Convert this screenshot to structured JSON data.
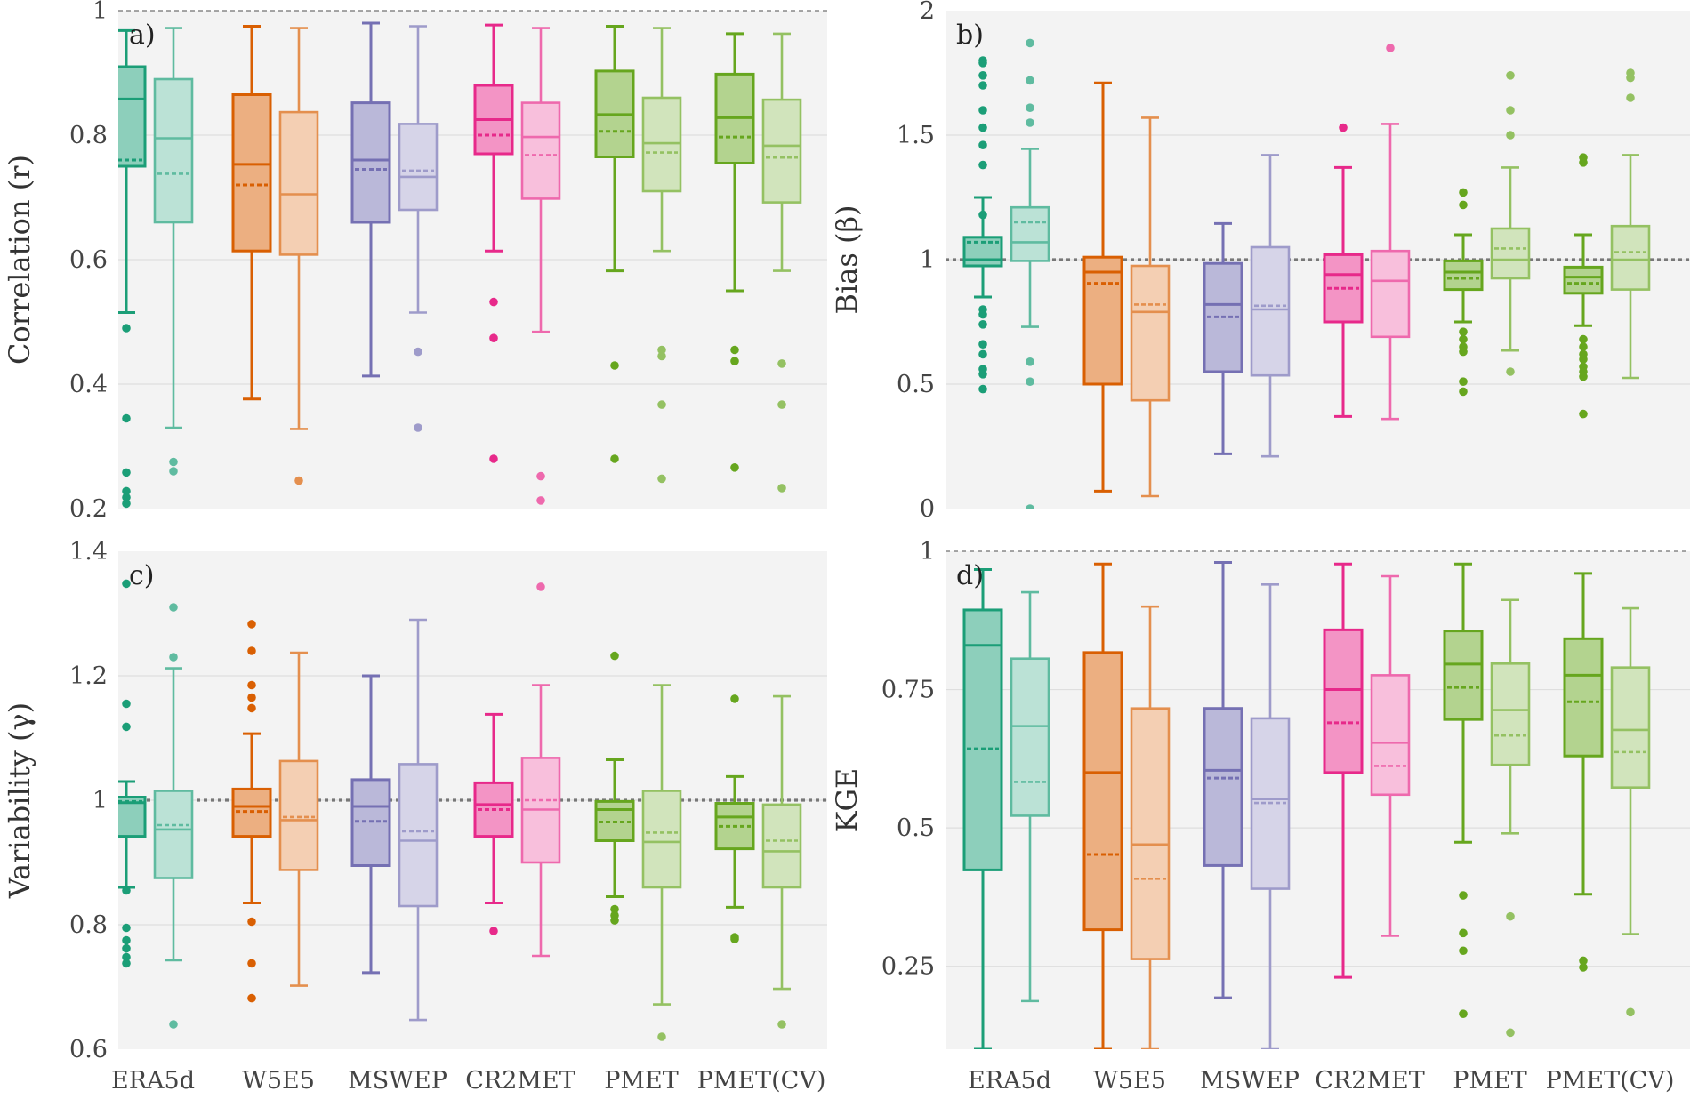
{
  "colors": {
    "ERA5d": "#1b9e77",
    "W5E5": "#d95f02",
    "MSWEP": "#7570b3",
    "CR2MET": "#e7298a",
    "PMET": "#66a61e",
    "PMET(CV)": "#66a61e",
    "panel_bg": "#f3f3f3",
    "grid": "#dedede",
    "reference_line": "#777777"
  },
  "chart_data": [
    {
      "type": "box",
      "panel_label": "a)",
      "ylabel": "Correlation (r)",
      "ylim": [
        0.2,
        1.0
      ],
      "yticks": [
        0.2,
        0.4,
        0.6,
        0.8,
        1.0
      ],
      "ytick_labels": [
        "0.2",
        "0.4",
        "0.6",
        "0.8",
        "1"
      ],
      "reference_line": 1.0,
      "reference_style": "thin",
      "categories": [
        "ERA5d",
        "W5E5",
        "MSWEP",
        "CR2MET",
        "PMET",
        "PMET(CV)"
      ],
      "show_xlabels": false,
      "boxes": [
        {
          "cat": "ERA5d",
          "variant": "dark",
          "whislo": 0.515,
          "q1": 0.75,
          "med": 0.858,
          "q3": 0.91,
          "whishi": 0.968,
          "mean": 0.76,
          "fliers": [
            0.49,
            0.345,
            0.258,
            0.228,
            0.218,
            0.208
          ]
        },
        {
          "cat": "ERA5d",
          "variant": "light",
          "whislo": 0.33,
          "q1": 0.66,
          "med": 0.795,
          "q3": 0.89,
          "whishi": 0.972,
          "mean": 0.738,
          "fliers": [
            0.275,
            0.26
          ]
        },
        {
          "cat": "W5E5",
          "variant": "dark",
          "whislo": 0.376,
          "q1": 0.614,
          "med": 0.753,
          "q3": 0.865,
          "whishi": 0.975,
          "mean": 0.72,
          "fliers": []
        },
        {
          "cat": "W5E5",
          "variant": "light",
          "whislo": 0.328,
          "q1": 0.608,
          "med": 0.705,
          "q3": 0.837,
          "whishi": 0.972,
          "mean": null,
          "fliers": [
            0.245
          ]
        },
        {
          "cat": "MSWEP",
          "variant": "dark",
          "whislo": 0.413,
          "q1": 0.66,
          "med": 0.76,
          "q3": 0.852,
          "whishi": 0.98,
          "mean": 0.745,
          "fliers": []
        },
        {
          "cat": "MSWEP",
          "variant": "light",
          "whislo": 0.515,
          "q1": 0.68,
          "med": 0.733,
          "q3": 0.818,
          "whishi": 0.975,
          "mean": 0.743,
          "fliers": [
            0.452,
            0.33
          ]
        },
        {
          "cat": "CR2MET",
          "variant": "dark",
          "whislo": 0.614,
          "q1": 0.77,
          "med": 0.825,
          "q3": 0.88,
          "whishi": 0.977,
          "mean": 0.8,
          "fliers": [
            0.532,
            0.474,
            0.28
          ]
        },
        {
          "cat": "CR2MET",
          "variant": "light",
          "whislo": 0.484,
          "q1": 0.698,
          "med": 0.797,
          "q3": 0.852,
          "whishi": 0.972,
          "mean": 0.768,
          "fliers": [
            0.252,
            0.213
          ]
        },
        {
          "cat": "PMET",
          "variant": "dark",
          "whislo": 0.582,
          "q1": 0.765,
          "med": 0.833,
          "q3": 0.903,
          "whishi": 0.975,
          "mean": 0.806,
          "fliers": [
            0.43,
            0.28
          ]
        },
        {
          "cat": "PMET",
          "variant": "light",
          "whislo": 0.614,
          "q1": 0.71,
          "med": 0.787,
          "q3": 0.86,
          "whishi": 0.972,
          "mean": 0.772,
          "fliers": [
            0.455,
            0.445,
            0.367,
            0.248
          ]
        },
        {
          "cat": "PMET(CV)",
          "variant": "dark",
          "whislo": 0.55,
          "q1": 0.755,
          "med": 0.828,
          "q3": 0.898,
          "whishi": 0.963,
          "mean": 0.797,
          "fliers": [
            0.455,
            0.437,
            0.266
          ]
        },
        {
          "cat": "PMET(CV)",
          "variant": "light",
          "whislo": 0.582,
          "q1": 0.692,
          "med": 0.783,
          "q3": 0.857,
          "whishi": 0.963,
          "mean": 0.764,
          "fliers": [
            0.433,
            0.367,
            0.233
          ]
        }
      ]
    },
    {
      "type": "box",
      "panel_label": "b)",
      "ylabel": "Bias (β)",
      "ylim": [
        0,
        2
      ],
      "yticks": [
        0,
        0.5,
        1,
        1.5,
        2
      ],
      "ytick_labels": [
        "0",
        "0.5",
        "1",
        "1.5",
        "2"
      ],
      "reference_line": 1.0,
      "reference_style": "thick",
      "categories": [
        "ERA5d",
        "W5E5",
        "MSWEP",
        "CR2MET",
        "PMET",
        "PMET(CV)"
      ],
      "show_xlabels": false,
      "boxes": [
        {
          "cat": "ERA5d",
          "variant": "dark",
          "whislo": 0.85,
          "q1": 0.975,
          "med": 1.0,
          "q3": 1.09,
          "whishi": 1.25,
          "mean": 1.07,
          "fliers": [
            1.8,
            1.79,
            1.74,
            1.7,
            1.6,
            1.53,
            1.46,
            1.38,
            1.18,
            0.8,
            0.78,
            0.74,
            0.66,
            0.62,
            0.56,
            0.54,
            0.48
          ]
        },
        {
          "cat": "ERA5d",
          "variant": "light",
          "whislo": 0.73,
          "q1": 0.995,
          "med": 1.07,
          "q3": 1.21,
          "whishi": 1.445,
          "mean": 1.15,
          "fliers": [
            1.87,
            1.72,
            1.61,
            1.55,
            0.59,
            0.51,
            0.0
          ]
        },
        {
          "cat": "W5E5",
          "variant": "dark",
          "whislo": 0.07,
          "q1": 0.5,
          "med": 0.95,
          "q3": 1.01,
          "whishi": 1.71,
          "mean": 0.905,
          "fliers": []
        },
        {
          "cat": "W5E5",
          "variant": "light",
          "whislo": 0.05,
          "q1": 0.435,
          "med": 0.79,
          "q3": 0.975,
          "whishi": 1.57,
          "mean": 0.82,
          "fliers": []
        },
        {
          "cat": "MSWEP",
          "variant": "dark",
          "whislo": 0.22,
          "q1": 0.55,
          "med": 0.82,
          "q3": 0.985,
          "whishi": 1.145,
          "mean": 0.77,
          "fliers": []
        },
        {
          "cat": "MSWEP",
          "variant": "light",
          "whislo": 0.21,
          "q1": 0.535,
          "med": 0.8,
          "q3": 1.05,
          "whishi": 1.42,
          "mean": 0.815,
          "fliers": []
        },
        {
          "cat": "CR2MET",
          "variant": "dark",
          "whislo": 0.37,
          "q1": 0.75,
          "med": 0.94,
          "q3": 1.02,
          "whishi": 1.37,
          "mean": 0.885,
          "fliers": [
            1.53
          ]
        },
        {
          "cat": "CR2MET",
          "variant": "light",
          "whislo": 0.36,
          "q1": 0.69,
          "med": 0.915,
          "q3": 1.035,
          "whishi": 1.545,
          "mean": null,
          "fliers": [
            1.85
          ]
        },
        {
          "cat": "PMET",
          "variant": "dark",
          "whislo": 0.75,
          "q1": 0.88,
          "med": 0.95,
          "q3": 0.995,
          "whishi": 1.1,
          "mean": 0.925,
          "fliers": [
            1.27,
            1.22,
            0.71,
            0.68,
            0.65,
            0.63,
            0.51,
            0.47
          ]
        },
        {
          "cat": "PMET",
          "variant": "light",
          "whislo": 0.635,
          "q1": 0.925,
          "med": 1.0,
          "q3": 1.125,
          "whishi": 1.37,
          "mean": 1.045,
          "fliers": [
            1.74,
            1.6,
            1.5,
            0.55
          ]
        },
        {
          "cat": "PMET(CV)",
          "variant": "dark",
          "whislo": 0.735,
          "q1": 0.865,
          "med": 0.93,
          "q3": 0.97,
          "whishi": 1.1,
          "mean": 0.905,
          "fliers": [
            1.41,
            1.39,
            0.68,
            0.65,
            0.62,
            0.6,
            0.57,
            0.55,
            0.53,
            0.38
          ]
        },
        {
          "cat": "PMET(CV)",
          "variant": "light",
          "whislo": 0.525,
          "q1": 0.88,
          "med": 1.0,
          "q3": 1.135,
          "whishi": 1.42,
          "mean": 1.03,
          "fliers": [
            1.75,
            1.73,
            1.65
          ]
        }
      ]
    },
    {
      "type": "box",
      "panel_label": "c)",
      "ylabel": "Variability (γ)",
      "ylim": [
        0.6,
        1.4
      ],
      "yticks": [
        0.6,
        0.8,
        1.0,
        1.2,
        1.4
      ],
      "ytick_labels": [
        "0.6",
        "0.8",
        "1",
        "1.2",
        "1.4"
      ],
      "reference_line": 1.0,
      "reference_style": "thick",
      "categories": [
        "ERA5d",
        "W5E5",
        "MSWEP",
        "CR2MET",
        "PMET",
        "PMET(CV)"
      ],
      "show_xlabels": true,
      "boxes": [
        {
          "cat": "ERA5d",
          "variant": "dark",
          "whislo": 0.86,
          "q1": 0.942,
          "med": 0.996,
          "q3": 1.005,
          "whishi": 1.03,
          "mean": 0.998,
          "fliers": [
            1.348,
            1.155,
            1.118,
            0.855,
            0.795,
            0.775,
            0.762,
            0.748,
            0.738
          ]
        },
        {
          "cat": "ERA5d",
          "variant": "light",
          "whislo": 0.743,
          "q1": 0.875,
          "med": 0.953,
          "q3": 1.015,
          "whishi": 1.212,
          "mean": 0.96,
          "fliers": [
            1.31,
            1.23,
            0.64
          ]
        },
        {
          "cat": "W5E5",
          "variant": "dark",
          "whislo": 0.835,
          "q1": 0.942,
          "med": 0.99,
          "q3": 1.018,
          "whishi": 1.107,
          "mean": 0.982,
          "fliers": [
            1.283,
            1.24,
            1.185,
            1.165,
            1.148,
            0.805,
            0.738,
            0.682
          ]
        },
        {
          "cat": "W5E5",
          "variant": "light",
          "whislo": 0.702,
          "q1": 0.888,
          "med": 0.968,
          "q3": 1.063,
          "whishi": 1.237,
          "mean": 0.973,
          "fliers": []
        },
        {
          "cat": "MSWEP",
          "variant": "dark",
          "whislo": 0.723,
          "q1": 0.895,
          "med": 0.99,
          "q3": 1.033,
          "whishi": 1.2,
          "mean": 0.966,
          "fliers": []
        },
        {
          "cat": "MSWEP",
          "variant": "light",
          "whislo": 0.647,
          "q1": 0.83,
          "med": 0.935,
          "q3": 1.058,
          "whishi": 1.29,
          "mean": 0.95,
          "fliers": []
        },
        {
          "cat": "CR2MET",
          "variant": "dark",
          "whislo": 0.835,
          "q1": 0.942,
          "med": 0.993,
          "q3": 1.028,
          "whishi": 1.138,
          "mean": 0.985,
          "fliers": [
            0.79
          ]
        },
        {
          "cat": "CR2MET",
          "variant": "light",
          "whislo": 0.75,
          "q1": 0.9,
          "med": 0.985,
          "q3": 1.068,
          "whishi": 1.185,
          "mean": 1.0,
          "fliers": [
            1.343
          ]
        },
        {
          "cat": "PMET",
          "variant": "dark",
          "whislo": 0.845,
          "q1": 0.935,
          "med": 0.985,
          "q3": 0.998,
          "whishi": 1.065,
          "mean": 0.965,
          "fliers": [
            1.232,
            0.825,
            0.815,
            0.807
          ]
        },
        {
          "cat": "PMET",
          "variant": "light",
          "whislo": 0.672,
          "q1": 0.86,
          "med": 0.933,
          "q3": 1.015,
          "whishi": 1.185,
          "mean": 0.948,
          "fliers": [
            0.62
          ]
        },
        {
          "cat": "PMET(CV)",
          "variant": "dark",
          "whislo": 0.828,
          "q1": 0.922,
          "med": 0.973,
          "q3": 0.995,
          "whishi": 1.038,
          "mean": 0.958,
          "fliers": [
            1.163,
            0.78,
            0.777
          ]
        },
        {
          "cat": "PMET(CV)",
          "variant": "light",
          "whislo": 0.697,
          "q1": 0.86,
          "med": 0.918,
          "q3": 0.993,
          "whishi": 1.167,
          "mean": 0.935,
          "fliers": [
            0.64
          ]
        }
      ]
    },
    {
      "type": "box",
      "panel_label": "d)",
      "ylabel": "KGE",
      "ylim": [
        0.1,
        1.0
      ],
      "yticks": [
        0.25,
        0.5,
        0.75,
        1.0
      ],
      "ytick_labels": [
        "0.25",
        "0.5",
        "0.75",
        "1"
      ],
      "reference_line": 1.0,
      "reference_style": "thin",
      "categories": [
        "ERA5d",
        "W5E5",
        "MSWEP",
        "CR2MET",
        "PMET",
        "PMET(CV)"
      ],
      "show_xlabels": true,
      "boxes": [
        {
          "cat": "ERA5d",
          "variant": "dark",
          "whislo": 0.1,
          "q1": 0.424,
          "med": 0.83,
          "q3": 0.894,
          "whishi": 0.967,
          "mean": 0.643,
          "fliers": []
        },
        {
          "cat": "ERA5d",
          "variant": "light",
          "whislo": 0.187,
          "q1": 0.522,
          "med": 0.684,
          "q3": 0.806,
          "whishi": 0.926,
          "mean": 0.583,
          "fliers": []
        },
        {
          "cat": "W5E5",
          "variant": "dark",
          "whislo": 0.1,
          "q1": 0.316,
          "med": 0.6,
          "q3": 0.817,
          "whishi": 0.977,
          "mean": 0.452,
          "fliers": []
        },
        {
          "cat": "W5E5",
          "variant": "light",
          "whislo": 0.1,
          "q1": 0.263,
          "med": 0.47,
          "q3": 0.716,
          "whishi": 0.9,
          "mean": 0.408,
          "fliers": []
        },
        {
          "cat": "MSWEP",
          "variant": "dark",
          "whislo": 0.193,
          "q1": 0.432,
          "med": 0.604,
          "q3": 0.716,
          "whishi": 0.98,
          "mean": 0.59,
          "fliers": []
        },
        {
          "cat": "MSWEP",
          "variant": "light",
          "whislo": 0.1,
          "q1": 0.39,
          "med": 0.552,
          "q3": 0.698,
          "whishi": 0.94,
          "mean": 0.545,
          "fliers": []
        },
        {
          "cat": "CR2MET",
          "variant": "dark",
          "whislo": 0.23,
          "q1": 0.6,
          "med": 0.75,
          "q3": 0.858,
          "whishi": 0.977,
          "mean": 0.69,
          "fliers": []
        },
        {
          "cat": "CR2MET",
          "variant": "light",
          "whislo": 0.305,
          "q1": 0.56,
          "med": 0.654,
          "q3": 0.776,
          "whishi": 0.955,
          "mean": 0.612,
          "fliers": []
        },
        {
          "cat": "PMET",
          "variant": "dark",
          "whislo": 0.474,
          "q1": 0.696,
          "med": 0.796,
          "q3": 0.856,
          "whishi": 0.977,
          "mean": 0.754,
          "fliers": [
            0.378,
            0.31,
            0.278,
            0.164
          ]
        },
        {
          "cat": "PMET",
          "variant": "light",
          "whislo": 0.49,
          "q1": 0.614,
          "med": 0.713,
          "q3": 0.797,
          "whishi": 0.912,
          "mean": 0.667,
          "fliers": [
            0.34,
            0.13
          ]
        },
        {
          "cat": "PMET(CV)",
          "variant": "dark",
          "whislo": 0.38,
          "q1": 0.63,
          "med": 0.776,
          "q3": 0.842,
          "whishi": 0.96,
          "mean": 0.728,
          "fliers": [
            0.26,
            0.248
          ]
        },
        {
          "cat": "PMET(CV)",
          "variant": "light",
          "whislo": 0.308,
          "q1": 0.573,
          "med": 0.677,
          "q3": 0.79,
          "whishi": 0.897,
          "mean": 0.637,
          "fliers": [
            0.167
          ]
        }
      ]
    }
  ]
}
